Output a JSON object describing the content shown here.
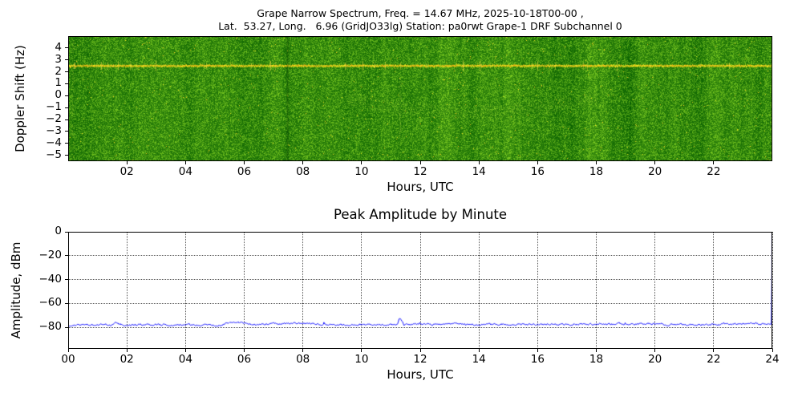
{
  "figure": {
    "background": "#ffffff"
  },
  "chart_data": [
    {
      "type": "heatmap",
      "name": "doppler-spectrogram",
      "title_line1": "Grape Narrow Spectrum, Freq. = 14.67 MHz, 2025-10-18T00-00 ,",
      "title_line2": "Lat.  53.27, Long.   6.96 (GridJO33lg) Station: pa0rwt Grape-1 DRF Subchannel 0",
      "xlabel": "Hours, UTC",
      "ylabel": "Doppler Shift (Hz)",
      "xlim": [
        0,
        24
      ],
      "ylim": [
        -5.5,
        5.0
      ],
      "xticks": [
        2,
        4,
        6,
        8,
        10,
        12,
        14,
        16,
        18,
        20,
        22
      ],
      "xtick_labels": [
        "02",
        "04",
        "06",
        "08",
        "10",
        "12",
        "14",
        "16",
        "18",
        "20",
        "22"
      ],
      "yticks": [
        4,
        3,
        2,
        1,
        0,
        -1,
        -2,
        -3,
        -4,
        -5
      ],
      "ytick_labels": [
        "4",
        "3",
        "2",
        "1",
        "0",
        "−1",
        "−2",
        "−3",
        "−4",
        "−5"
      ],
      "colormap": {
        "background_low": "#1e6f08",
        "background_high": "#5aa926",
        "fleck": "#e8d230",
        "carrier_core": "#ffd24a",
        "carrier_hot": "#ff9600"
      },
      "carrier": {
        "freq_hz": 2.5,
        "description": "continuous bright carrier line across all 24 h",
        "spike_regions": [
          [
            0.0,
            2.2
          ],
          [
            14.0,
            17.5
          ]
        ]
      },
      "features": [
        {
          "type": "diffuse_trace",
          "x_start": 9.5,
          "x_end": 18.0,
          "hz_start": -0.2,
          "hz_min": -1.4,
          "note": "faint daytime doppler-spread echo below 0 Hz"
        },
        {
          "type": "bright_column",
          "x_hr": 11.3,
          "hz_top": 1.5,
          "hz_bottom": -3.8,
          "note": "broadband vertical streak"
        },
        {
          "type": "dark_column",
          "x_hr": 7.45,
          "note": "darker vertical band"
        },
        {
          "type": "noise_burst",
          "x_hr": 0.15,
          "note": "full-height speckle burst at start"
        }
      ]
    },
    {
      "type": "line",
      "name": "peak-amplitude",
      "title": "Peak Amplitude by Minute",
      "xlabel": "Hours, UTC",
      "ylabel": "Amplitude, dBm",
      "xlim": [
        0,
        24
      ],
      "ylim": [
        -98,
        0
      ],
      "xticks": [
        0,
        2,
        4,
        6,
        8,
        10,
        12,
        14,
        16,
        18,
        20,
        22,
        24
      ],
      "xtick_labels": [
        "00",
        "02",
        "04",
        "06",
        "08",
        "10",
        "12",
        "14",
        "16",
        "18",
        "20",
        "22",
        "24"
      ],
      "yticks": [
        0,
        -20,
        -40,
        -60,
        -80
      ],
      "ytick_labels": [
        "0",
        "−20",
        "−40",
        "−60",
        "−80"
      ],
      "grid": true,
      "line_color": "#0000ff",
      "baseline_dbm": -78,
      "noise_amp_db": 1.1,
      "keypoints": [
        [
          0,
          -78.2
        ],
        [
          1.5,
          -78.0
        ],
        [
          1.62,
          -75.6
        ],
        [
          1.75,
          -78.0
        ],
        [
          5.2,
          -77.8
        ],
        [
          5.5,
          -76.2
        ],
        [
          5.9,
          -76.4
        ],
        [
          6.3,
          -77.6
        ],
        [
          8.25,
          -76.3
        ],
        [
          8.45,
          -77.8
        ],
        [
          11.2,
          -77.8
        ],
        [
          11.3,
          -72.3
        ],
        [
          11.45,
          -77.8
        ],
        [
          13.4,
          -76.9
        ],
        [
          13.6,
          -77.8
        ],
        [
          20.2,
          -77.1
        ],
        [
          20.5,
          -78.0
        ],
        [
          23.5,
          -76.9
        ],
        [
          23.9,
          -77.8
        ],
        [
          23.97,
          -78.0
        ],
        [
          24,
          -2
        ]
      ]
    }
  ]
}
